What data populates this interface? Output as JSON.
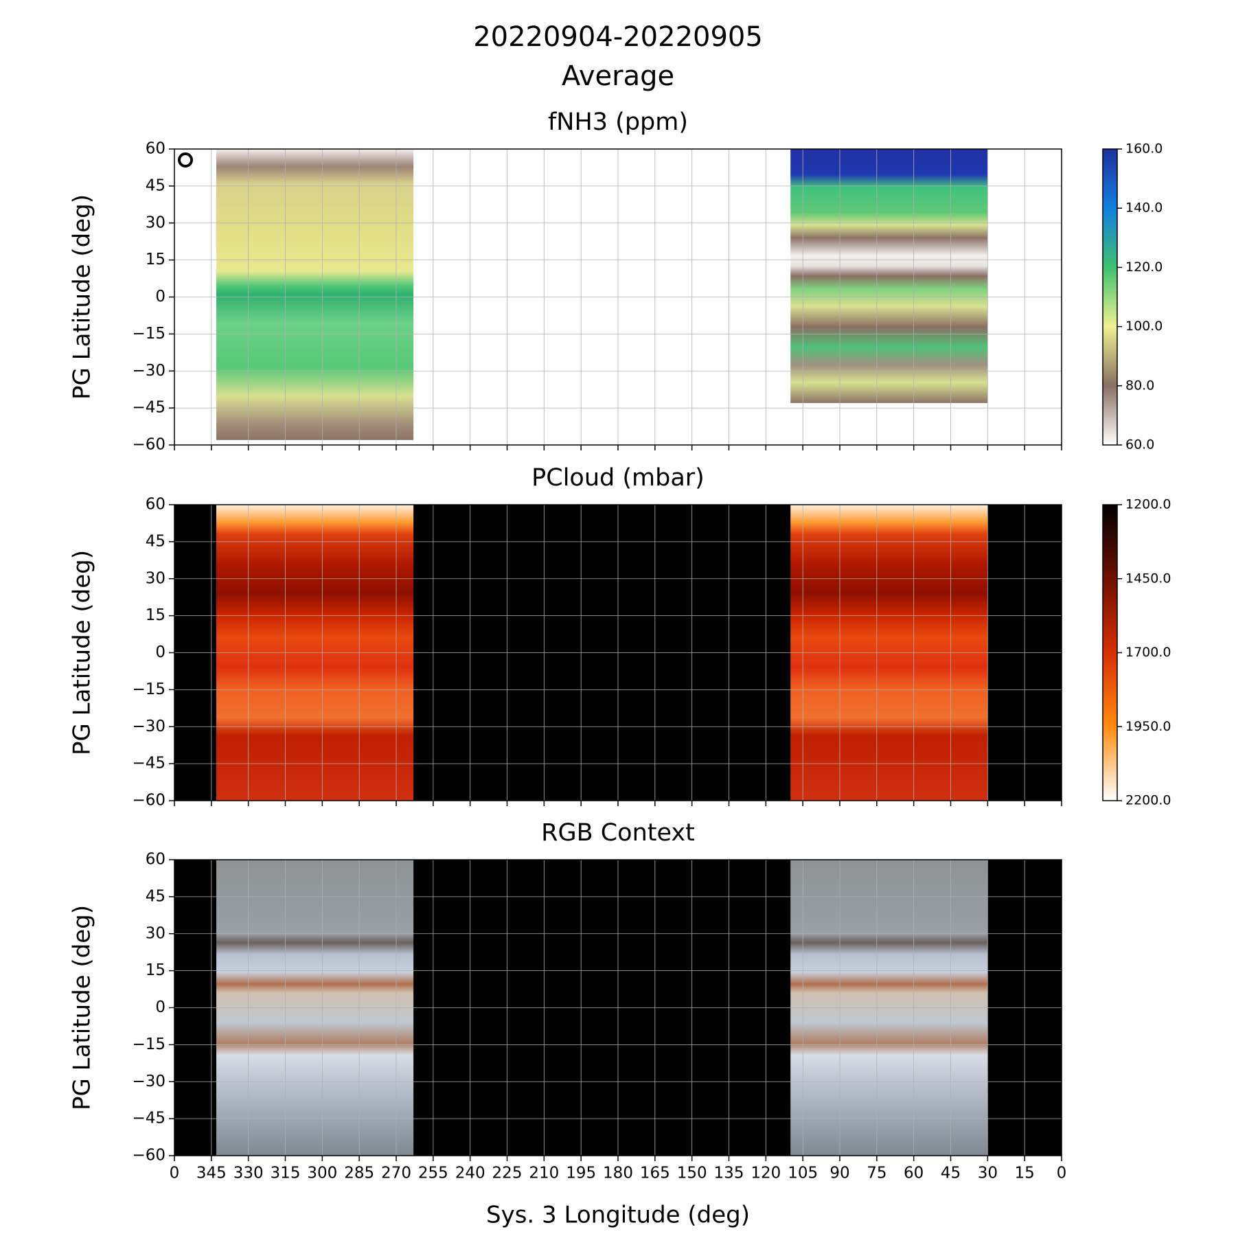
{
  "figure": {
    "title": "20220904-20220905",
    "subtitle": "Average",
    "xlabel": "Sys. 3 Longitude (deg)"
  },
  "chart_data": [
    {
      "type": "heatmap",
      "title": "fNH3 (ppm)",
      "ylabel": "PG Latitude (deg)",
      "background": "#ffffff",
      "grid": true,
      "show_xtick_labels": false,
      "xlim": [
        360,
        0
      ],
      "xticks": [
        {
          "value": 360,
          "label": "0"
        },
        345,
        330,
        315,
        300,
        285,
        270,
        255,
        240,
        225,
        210,
        195,
        180,
        165,
        150,
        135,
        120,
        105,
        90,
        75,
        60,
        45,
        30,
        15,
        0
      ],
      "ylim": [
        -60,
        60
      ],
      "yticks": [
        {
          "value": -60,
          "label": "−60"
        },
        {
          "value": -45,
          "label": "−45"
        },
        {
          "value": -30,
          "label": "−30"
        },
        {
          "value": -15,
          "label": "−15"
        },
        0,
        15,
        30,
        45,
        60
      ],
      "coverage": [
        {
          "lon": [
            343,
            263
          ],
          "lat": [
            60,
            -58
          ]
        },
        {
          "lon": [
            110,
            30
          ],
          "lat": [
            60,
            -43
          ]
        }
      ],
      "colorbar": {
        "lim": [
          60,
          160
        ],
        "colors": [
          "#ffffff",
          "#8a7064",
          "#f0f090",
          "#40c070",
          "#1080e0",
          "#2030a0"
        ],
        "ticks": [
          {
            "value": 60,
            "label": "60.0"
          },
          {
            "value": 80,
            "label": "80.0"
          },
          {
            "value": 100,
            "label": "100.0"
          },
          {
            "value": 120,
            "label": "120.0"
          },
          {
            "value": 140,
            "label": "140.0"
          },
          {
            "value": 160,
            "label": "160.0"
          }
        ]
      }
    },
    {
      "type": "heatmap",
      "title": "PCloud (mbar)",
      "ylabel": "PG Latitude (deg)",
      "background": "#000000",
      "grid": true,
      "show_xtick_labels": false,
      "xlim": [
        360,
        0
      ],
      "xticks": [
        {
          "value": 360,
          "label": "0"
        },
        345,
        330,
        315,
        300,
        285,
        270,
        255,
        240,
        225,
        210,
        195,
        180,
        165,
        150,
        135,
        120,
        105,
        90,
        75,
        60,
        45,
        30,
        15,
        0
      ],
      "ylim": [
        -60,
        60
      ],
      "yticks": [
        {
          "value": -60,
          "label": "−60"
        },
        {
          "value": -45,
          "label": "−45"
        },
        {
          "value": -30,
          "label": "−30"
        },
        {
          "value": -15,
          "label": "−15"
        },
        0,
        15,
        30,
        45,
        60
      ],
      "coverage": [
        {
          "lon": [
            343,
            263
          ],
          "lat": [
            60,
            -60
          ]
        },
        {
          "lon": [
            110,
            30
          ],
          "lat": [
            60,
            -60
          ]
        }
      ],
      "colorbar": {
        "lim": [
          2200,
          1200
        ],
        "colors": [
          "#ffffff",
          "#ff8c10",
          "#d83000",
          "#701000",
          "#000000"
        ],
        "ticks": [
          {
            "value": 1200,
            "label": "1200.0"
          },
          {
            "value": 1450,
            "label": "1450.0"
          },
          {
            "value": 1700,
            "label": "1700.0"
          },
          {
            "value": 1950,
            "label": "1950.0"
          },
          {
            "value": 2200,
            "label": "2200.0"
          }
        ]
      }
    },
    {
      "type": "heatmap",
      "title": "RGB Context",
      "ylabel": "PG Latitude (deg)",
      "background": "#000000",
      "grid": true,
      "show_xtick_labels": true,
      "xlim": [
        360,
        0
      ],
      "xticks": [
        {
          "value": 360,
          "label": "0"
        },
        345,
        330,
        315,
        300,
        285,
        270,
        255,
        240,
        225,
        210,
        195,
        180,
        165,
        150,
        135,
        120,
        105,
        90,
        75,
        60,
        45,
        30,
        15,
        0
      ],
      "ylim": [
        -60,
        60
      ],
      "yticks": [
        {
          "value": -60,
          "label": "−60"
        },
        {
          "value": -45,
          "label": "−45"
        },
        {
          "value": -30,
          "label": "−30"
        },
        {
          "value": -15,
          "label": "−15"
        },
        0,
        15,
        30,
        45,
        60
      ],
      "coverage": [
        {
          "lon": [
            343,
            263
          ],
          "lat": [
            60,
            -60
          ]
        },
        {
          "lon": [
            110,
            30
          ],
          "lat": [
            60,
            -60
          ]
        }
      ]
    }
  ]
}
